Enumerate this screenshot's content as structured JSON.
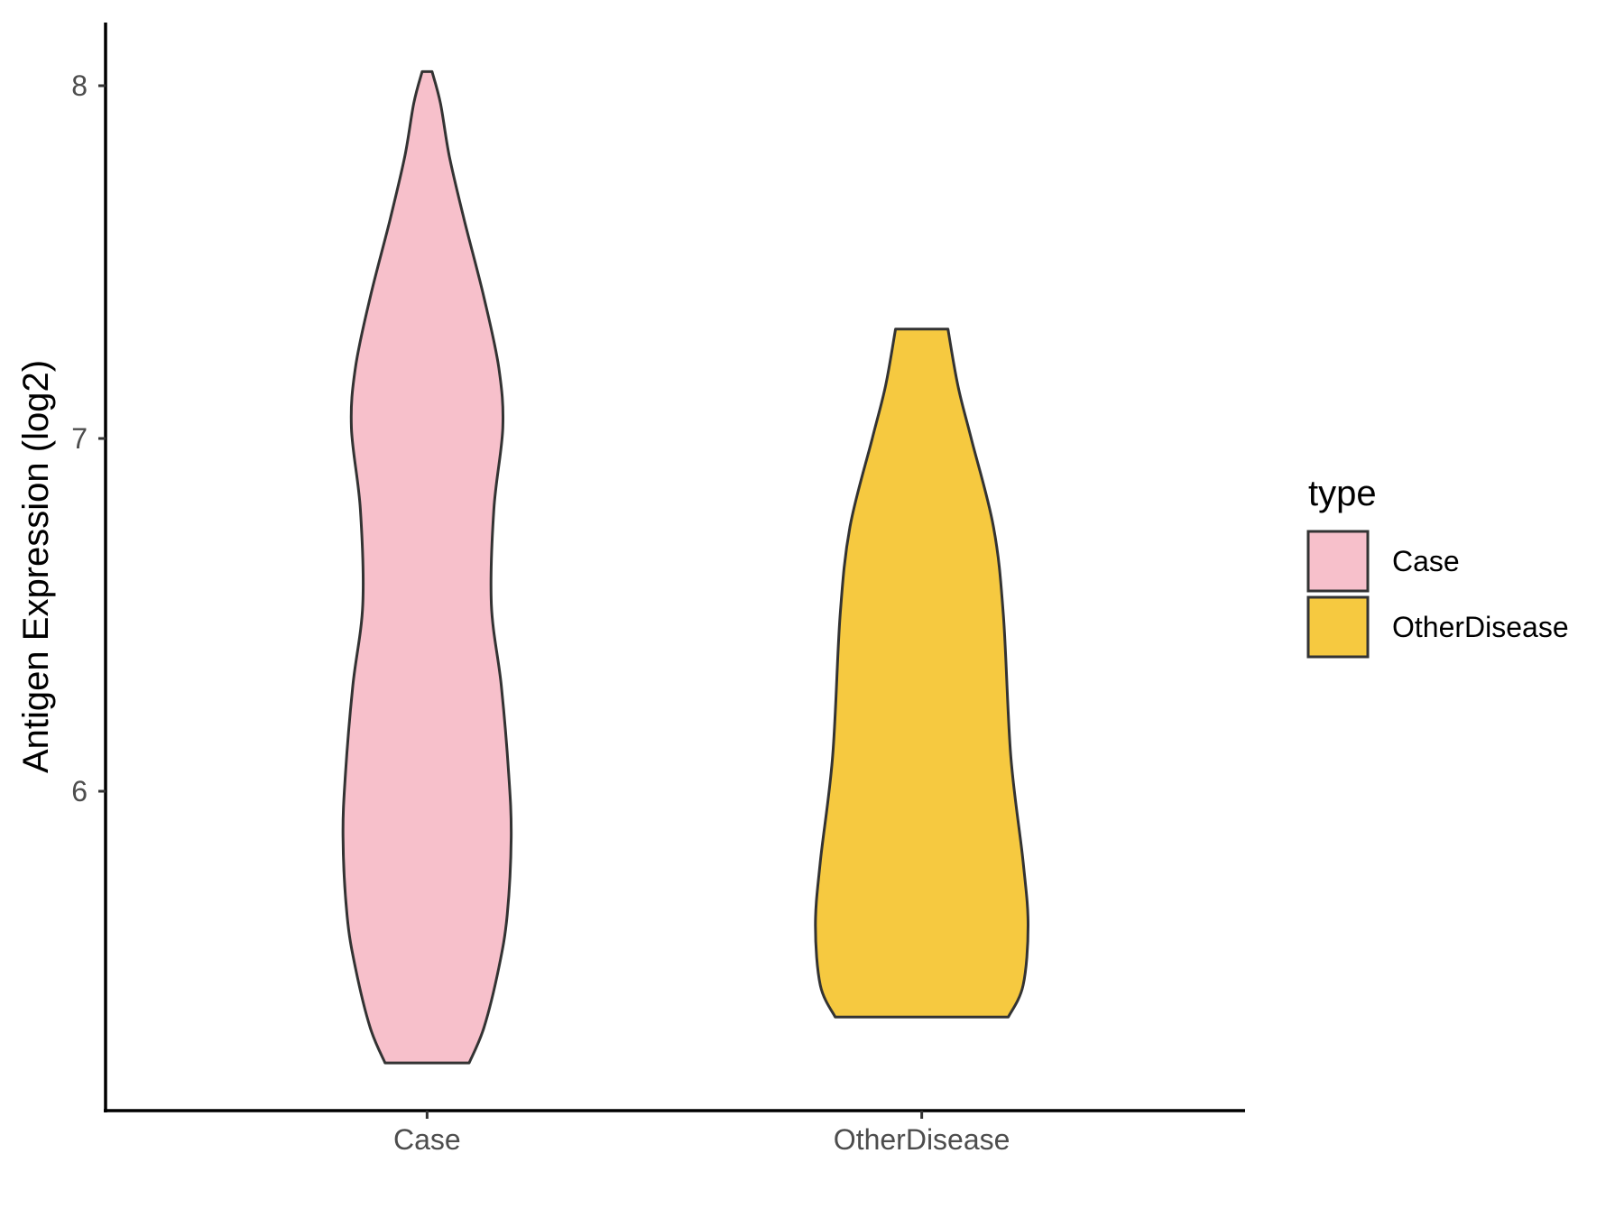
{
  "chart_data": {
    "type": "violin",
    "xlabel": "",
    "ylabel": "Antigen Expression (log2)",
    "categories": [
      "Case",
      "OtherDisease"
    ],
    "y_ticks": [
      6,
      7,
      8
    ],
    "ylim": [
      5.1,
      8.19
    ],
    "grid": false,
    "legend": {
      "title": "type",
      "position": "right",
      "entries": [
        {
          "label": "Case",
          "color": "#F7C0CB"
        },
        {
          "label": "OtherDisease",
          "color": "#F6C940"
        }
      ]
    },
    "series": [
      {
        "name": "Case",
        "color": "#F7C0CB",
        "min": 5.23,
        "max": 8.04,
        "density_profile": [
          {
            "y": 5.23,
            "half_width": 0.085
          },
          {
            "y": 5.33,
            "half_width": 0.115
          },
          {
            "y": 5.5,
            "half_width": 0.145
          },
          {
            "y": 5.65,
            "half_width": 0.162
          },
          {
            "y": 5.87,
            "half_width": 0.17
          },
          {
            "y": 6.05,
            "half_width": 0.165
          },
          {
            "y": 6.3,
            "half_width": 0.15
          },
          {
            "y": 6.53,
            "half_width": 0.13
          },
          {
            "y": 6.8,
            "half_width": 0.135
          },
          {
            "y": 7.03,
            "half_width": 0.153
          },
          {
            "y": 7.2,
            "half_width": 0.145
          },
          {
            "y": 7.4,
            "half_width": 0.115
          },
          {
            "y": 7.62,
            "half_width": 0.075
          },
          {
            "y": 7.8,
            "half_width": 0.045
          },
          {
            "y": 7.95,
            "half_width": 0.027
          },
          {
            "y": 8.04,
            "half_width": 0.01
          }
        ]
      },
      {
        "name": "OtherDisease",
        "color": "#F6C940",
        "min": 5.36,
        "max": 7.31,
        "density_profile": [
          {
            "y": 5.36,
            "half_width": 0.175
          },
          {
            "y": 5.45,
            "half_width": 0.205
          },
          {
            "y": 5.62,
            "half_width": 0.215
          },
          {
            "y": 5.8,
            "half_width": 0.205
          },
          {
            "y": 6.1,
            "half_width": 0.18
          },
          {
            "y": 6.5,
            "half_width": 0.165
          },
          {
            "y": 6.75,
            "half_width": 0.145
          },
          {
            "y": 7.0,
            "half_width": 0.1
          },
          {
            "y": 7.15,
            "half_width": 0.073
          },
          {
            "y": 7.31,
            "half_width": 0.053
          }
        ]
      }
    ]
  }
}
